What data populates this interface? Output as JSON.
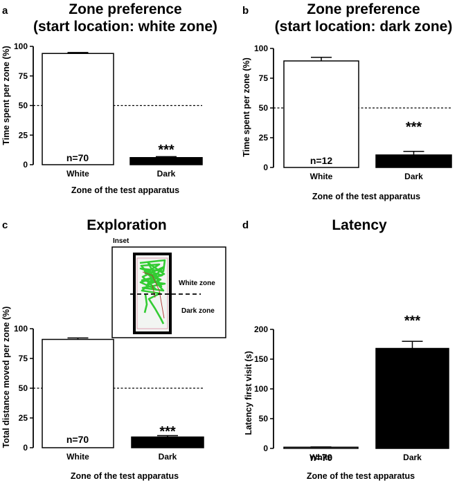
{
  "chart_data": [
    {
      "panel": "a",
      "type": "bar",
      "title_lines": [
        "Zone preference",
        "(start location: white zone)"
      ],
      "ylabel": "Time spent per zone (%)",
      "xlabel": "Zone of the test apparatus",
      "categories": [
        "White",
        "Dark"
      ],
      "values": [
        94,
        6
      ],
      "errors": [
        0.8,
        0.8
      ],
      "bar_fills": [
        "#ffffff",
        "#000000"
      ],
      "ylim": [
        0,
        100
      ],
      "yticks": [
        0,
        25,
        50,
        75,
        100
      ],
      "reference_line": 50,
      "n_label": "n=70",
      "significance": "***",
      "grid": false
    },
    {
      "panel": "b",
      "type": "bar",
      "title_lines": [
        "Zone preference",
        "(start location: dark zone)"
      ],
      "ylabel": "Time spent per zone (%)",
      "xlabel": "Zone of the test apparatus",
      "categories": [
        "White",
        "Dark"
      ],
      "values": [
        89.5,
        10.5
      ],
      "errors": [
        3,
        3
      ],
      "bar_fills": [
        "#ffffff",
        "#000000"
      ],
      "ylim": [
        0,
        100
      ],
      "yticks": [
        0,
        25,
        50,
        75,
        100
      ],
      "reference_line": 50,
      "n_label": "n=12",
      "significance": "***",
      "grid": false
    },
    {
      "panel": "c",
      "type": "bar",
      "title_lines": [
        "Exploration"
      ],
      "ylabel": "Total distance moved per zone (%)",
      "xlabel": "Zone of the test apparatus",
      "categories": [
        "White",
        "Dark"
      ],
      "values": [
        91,
        9
      ],
      "errors": [
        1.2,
        1.2
      ],
      "bar_fills": [
        "#ffffff",
        "#000000"
      ],
      "ylim": [
        0,
        100
      ],
      "yticks": [
        0,
        25,
        50,
        75,
        100
      ],
      "reference_line": 50,
      "n_label": "n=70",
      "significance": "***",
      "grid": false,
      "inset": {
        "title": "Inset",
        "upper_label": "White zone",
        "lower_label": "Dark zone"
      }
    },
    {
      "panel": "d",
      "type": "bar",
      "title_lines": [
        "Latency"
      ],
      "ylabel": "Latency first visit  (s)",
      "xlabel": "Zone of the test apparatus",
      "categories": [
        "White",
        "Dark"
      ],
      "values": [
        2,
        168
      ],
      "errors": [
        0.5,
        12
      ],
      "bar_fills": [
        "#ffffff",
        "#000000"
      ],
      "ylim": [
        0,
        200
      ],
      "yticks": [
        0,
        50,
        100,
        150,
        200
      ],
      "reference_line": null,
      "n_label": "n=70",
      "significance": "***",
      "grid": false
    }
  ]
}
